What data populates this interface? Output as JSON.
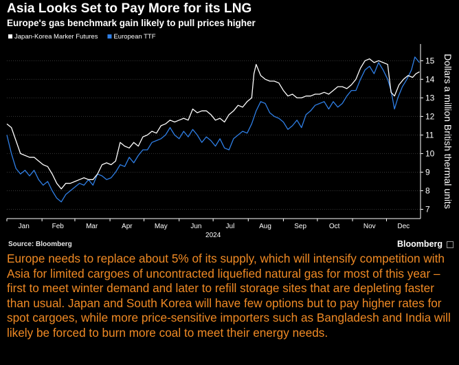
{
  "title": "Asia Looks Set to Pay More for its LNG",
  "subtitle": "Europe's gas benchmark gain likely to pull prices higher",
  "source": "Source: Bloomberg",
  "brand": "Bloomberg",
  "caption": "Europe needs to replace about 5% of its supply, which will intensify competition with Asia for limited cargoes of uncontracted liquefied natural gas for most of this year – first to meet winter demand and later to refill storage sites that are depleting faster than usual. Japan and South Korea will have few options but to pay higher rates for spot cargoes, while more price-sensitive importers such as Bangladesh and India will likely be forced to burn more coal to meet their energy needs.",
  "colors": {
    "background": "#000000",
    "jkm": "#ffffff",
    "ttf": "#2f7fe6",
    "caption": "#f08a24"
  },
  "chart_data": {
    "type": "line",
    "title": "Asia Looks Set to Pay More for its LNG",
    "subtitle": "Europe's gas benchmark gain likely to pull prices higher",
    "ylabel": "Dollars a million British thermal units",
    "xlabel": "2024",
    "ylim": [
      6.5,
      15.9
    ],
    "y_ticks": [
      7,
      8,
      9,
      10,
      11,
      12,
      13,
      14,
      15
    ],
    "x_range": [
      "2024-01-01",
      "2024-12-31"
    ],
    "x_ticks": [
      {
        "label": "Jan",
        "date": "2024-01-16"
      },
      {
        "label": "Feb",
        "date": "2024-02-15"
      },
      {
        "label": "Mar",
        "date": "2024-03-16"
      },
      {
        "label": "Apr",
        "date": "2024-04-16"
      },
      {
        "label": "May",
        "date": "2024-05-16"
      },
      {
        "label": "Jun",
        "date": "2024-06-16"
      },
      {
        "label": "Jul",
        "date": "2024-07-16"
      },
      {
        "label": "Aug",
        "date": "2024-08-16"
      },
      {
        "label": "Sep",
        "date": "2024-09-16"
      },
      {
        "label": "Oct",
        "date": "2024-10-16"
      },
      {
        "label": "Nov",
        "date": "2024-11-16"
      },
      {
        "label": "Dec",
        "date": "2024-12-16"
      }
    ],
    "year_label": "2024",
    "legend_position": "top-left",
    "grid": "horizontal",
    "series": [
      {
        "name": "Japan-Korea Marker Futures",
        "color": "#ffffff",
        "points": [
          [
            "2024-01-01",
            11.6
          ],
          [
            "2024-01-05",
            11.4
          ],
          [
            "2024-01-09",
            10.7
          ],
          [
            "2024-01-13",
            10.0
          ],
          [
            "2024-01-17",
            9.9
          ],
          [
            "2024-01-21",
            9.8
          ],
          [
            "2024-01-25",
            9.8
          ],
          [
            "2024-01-29",
            9.6
          ],
          [
            "2024-02-02",
            9.4
          ],
          [
            "2024-02-06",
            9.3
          ],
          [
            "2024-02-10",
            8.9
          ],
          [
            "2024-02-14",
            8.4
          ],
          [
            "2024-02-18",
            8.1
          ],
          [
            "2024-02-22",
            8.4
          ],
          [
            "2024-02-26",
            8.4
          ],
          [
            "2024-03-01",
            8.5
          ],
          [
            "2024-03-05",
            8.6
          ],
          [
            "2024-03-09",
            8.7
          ],
          [
            "2024-03-13",
            8.6
          ],
          [
            "2024-03-17",
            8.6
          ],
          [
            "2024-03-21",
            8.9
          ],
          [
            "2024-03-25",
            9.4
          ],
          [
            "2024-03-29",
            9.5
          ],
          [
            "2024-04-02",
            9.4
          ],
          [
            "2024-04-06",
            9.6
          ],
          [
            "2024-04-10",
            10.6
          ],
          [
            "2024-04-14",
            10.4
          ],
          [
            "2024-04-18",
            10.3
          ],
          [
            "2024-04-22",
            10.6
          ],
          [
            "2024-04-26",
            10.4
          ],
          [
            "2024-04-30",
            10.9
          ],
          [
            "2024-05-04",
            11.0
          ],
          [
            "2024-05-08",
            11.2
          ],
          [
            "2024-05-12",
            11.1
          ],
          [
            "2024-05-16",
            11.5
          ],
          [
            "2024-05-20",
            11.6
          ],
          [
            "2024-05-24",
            11.8
          ],
          [
            "2024-05-28",
            11.7
          ],
          [
            "2024-06-01",
            11.8
          ],
          [
            "2024-06-05",
            11.9
          ],
          [
            "2024-06-09",
            11.8
          ],
          [
            "2024-06-13",
            12.4
          ],
          [
            "2024-06-17",
            12.2
          ],
          [
            "2024-06-21",
            12.3
          ],
          [
            "2024-06-25",
            12.3
          ],
          [
            "2024-06-29",
            12.1
          ],
          [
            "2024-07-03",
            11.8
          ],
          [
            "2024-07-07",
            11.9
          ],
          [
            "2024-07-11",
            11.7
          ],
          [
            "2024-07-15",
            12.1
          ],
          [
            "2024-07-19",
            12.3
          ],
          [
            "2024-07-23",
            12.6
          ],
          [
            "2024-07-27",
            12.5
          ],
          [
            "2024-07-31",
            12.8
          ],
          [
            "2024-08-04",
            13.0
          ],
          [
            "2024-08-06",
            14.3
          ],
          [
            "2024-08-08",
            14.8
          ],
          [
            "2024-08-12",
            14.2
          ],
          [
            "2024-08-16",
            14.0
          ],
          [
            "2024-08-20",
            13.9
          ],
          [
            "2024-08-24",
            13.9
          ],
          [
            "2024-08-28",
            13.8
          ],
          [
            "2024-09-01",
            13.4
          ],
          [
            "2024-09-05",
            13.1
          ],
          [
            "2024-09-09",
            13.2
          ],
          [
            "2024-09-13",
            13.0
          ],
          [
            "2024-09-17",
            13.0
          ],
          [
            "2024-09-21",
            13.1
          ],
          [
            "2024-09-25",
            13.1
          ],
          [
            "2024-09-29",
            13.2
          ],
          [
            "2024-10-03",
            13.2
          ],
          [
            "2024-10-07",
            13.3
          ],
          [
            "2024-10-11",
            13.2
          ],
          [
            "2024-10-15",
            13.4
          ],
          [
            "2024-10-19",
            13.6
          ],
          [
            "2024-10-23",
            13.6
          ],
          [
            "2024-10-27",
            13.5
          ],
          [
            "2024-10-31",
            13.7
          ],
          [
            "2024-11-04",
            14.0
          ],
          [
            "2024-11-08",
            14.6
          ],
          [
            "2024-11-12",
            15.0
          ],
          [
            "2024-11-16",
            15.1
          ],
          [
            "2024-11-20",
            14.9
          ],
          [
            "2024-11-24",
            15.0
          ],
          [
            "2024-11-28",
            14.9
          ],
          [
            "2024-12-02",
            14.8
          ],
          [
            "2024-12-05",
            13.3
          ],
          [
            "2024-12-08",
            13.1
          ],
          [
            "2024-12-12",
            13.7
          ],
          [
            "2024-12-16",
            14.0
          ],
          [
            "2024-12-20",
            14.2
          ],
          [
            "2024-12-24",
            14.1
          ],
          [
            "2024-12-27",
            14.3
          ],
          [
            "2024-12-30",
            14.4
          ]
        ]
      },
      {
        "name": "European TTF",
        "color": "#2f7fe6",
        "points": [
          [
            "2024-01-01",
            11.0
          ],
          [
            "2024-01-05",
            10.0
          ],
          [
            "2024-01-09",
            9.2
          ],
          [
            "2024-01-13",
            8.9
          ],
          [
            "2024-01-17",
            9.1
          ],
          [
            "2024-01-21",
            8.8
          ],
          [
            "2024-01-25",
            9.1
          ],
          [
            "2024-01-29",
            8.6
          ],
          [
            "2024-02-02",
            8.3
          ],
          [
            "2024-02-06",
            8.5
          ],
          [
            "2024-02-10",
            8.0
          ],
          [
            "2024-02-14",
            7.6
          ],
          [
            "2024-02-18",
            7.4
          ],
          [
            "2024-02-22",
            7.8
          ],
          [
            "2024-02-26",
            8.0
          ],
          [
            "2024-03-01",
            8.2
          ],
          [
            "2024-03-05",
            8.4
          ],
          [
            "2024-03-09",
            8.3
          ],
          [
            "2024-03-13",
            8.6
          ],
          [
            "2024-03-17",
            8.3
          ],
          [
            "2024-03-21",
            8.9
          ],
          [
            "2024-03-25",
            8.8
          ],
          [
            "2024-03-29",
            8.6
          ],
          [
            "2024-04-02",
            8.7
          ],
          [
            "2024-04-06",
            9.0
          ],
          [
            "2024-04-10",
            9.4
          ],
          [
            "2024-04-14",
            9.3
          ],
          [
            "2024-04-18",
            9.8
          ],
          [
            "2024-04-22",
            9.5
          ],
          [
            "2024-04-26",
            9.9
          ],
          [
            "2024-04-30",
            10.2
          ],
          [
            "2024-05-04",
            10.2
          ],
          [
            "2024-05-08",
            10.6
          ],
          [
            "2024-05-12",
            10.7
          ],
          [
            "2024-05-16",
            10.8
          ],
          [
            "2024-05-20",
            11.0
          ],
          [
            "2024-05-24",
            11.4
          ],
          [
            "2024-05-28",
            11.0
          ],
          [
            "2024-06-01",
            10.8
          ],
          [
            "2024-06-05",
            11.2
          ],
          [
            "2024-06-09",
            10.9
          ],
          [
            "2024-06-13",
            11.3
          ],
          [
            "2024-06-17",
            11.0
          ],
          [
            "2024-06-21",
            10.6
          ],
          [
            "2024-06-25",
            10.9
          ],
          [
            "2024-06-29",
            10.7
          ],
          [
            "2024-07-03",
            10.4
          ],
          [
            "2024-07-07",
            10.8
          ],
          [
            "2024-07-11",
            10.3
          ],
          [
            "2024-07-15",
            10.2
          ],
          [
            "2024-07-19",
            10.8
          ],
          [
            "2024-07-23",
            11.0
          ],
          [
            "2024-07-27",
            11.2
          ],
          [
            "2024-07-31",
            11.1
          ],
          [
            "2024-08-04",
            11.6
          ],
          [
            "2024-08-08",
            12.3
          ],
          [
            "2024-08-12",
            12.8
          ],
          [
            "2024-08-16",
            12.7
          ],
          [
            "2024-08-20",
            12.2
          ],
          [
            "2024-08-24",
            12.0
          ],
          [
            "2024-08-28",
            11.9
          ],
          [
            "2024-09-01",
            11.7
          ],
          [
            "2024-09-05",
            11.3
          ],
          [
            "2024-09-09",
            11.5
          ],
          [
            "2024-09-13",
            11.8
          ],
          [
            "2024-09-17",
            11.4
          ],
          [
            "2024-09-21",
            12.1
          ],
          [
            "2024-09-25",
            12.3
          ],
          [
            "2024-09-29",
            12.6
          ],
          [
            "2024-10-03",
            12.7
          ],
          [
            "2024-10-07",
            12.8
          ],
          [
            "2024-10-11",
            12.4
          ],
          [
            "2024-10-15",
            12.8
          ],
          [
            "2024-10-19",
            12.5
          ],
          [
            "2024-10-23",
            12.7
          ],
          [
            "2024-10-27",
            13.1
          ],
          [
            "2024-10-31",
            13.4
          ],
          [
            "2024-11-04",
            13.4
          ],
          [
            "2024-11-08",
            14.0
          ],
          [
            "2024-11-12",
            14.5
          ],
          [
            "2024-11-16",
            14.7
          ],
          [
            "2024-11-20",
            14.3
          ],
          [
            "2024-11-24",
            14.9
          ],
          [
            "2024-11-28",
            14.5
          ],
          [
            "2024-12-02",
            14.0
          ],
          [
            "2024-12-05",
            13.4
          ],
          [
            "2024-12-08",
            12.4
          ],
          [
            "2024-12-11",
            13.0
          ],
          [
            "2024-12-15",
            13.6
          ],
          [
            "2024-12-19",
            14.0
          ],
          [
            "2024-12-23",
            14.5
          ],
          [
            "2024-12-26",
            15.2
          ],
          [
            "2024-12-30",
            14.9
          ]
        ]
      }
    ]
  }
}
